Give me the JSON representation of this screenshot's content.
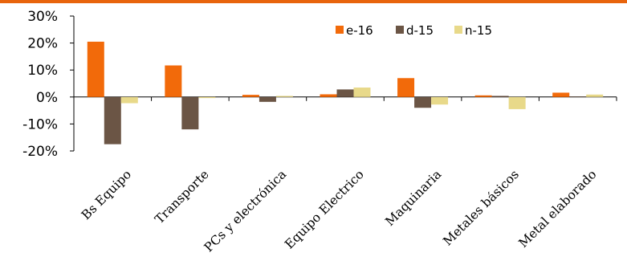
{
  "chart_data": {
    "type": "bar",
    "title": "",
    "xlabel": "",
    "ylabel": "",
    "categories": [
      "Bs Equipo",
      "Transporte",
      "PCs y electrónica",
      "Equipo Electrico",
      "Maquinaria",
      "Metales básicos",
      "Metal elaborado"
    ],
    "series": [
      {
        "name": "e-16",
        "color": "#f26a0a",
        "values": [
          20.5,
          11.7,
          0.8,
          1.0,
          7.0,
          0.6,
          1.6
        ]
      },
      {
        "name": "d-15",
        "color": "#6b5545",
        "values": [
          -17.5,
          -12.0,
          -1.8,
          2.8,
          -4.0,
          0.4,
          0.2
        ]
      },
      {
        "name": "n-15",
        "color": "#e8d98a",
        "values": [
          -2.3,
          -0.4,
          0.4,
          3.5,
          -2.8,
          -4.5,
          0.9
        ]
      }
    ],
    "ylim": [
      -20,
      30
    ],
    "yticks": [
      -20,
      -10,
      0,
      10,
      20,
      30
    ],
    "ytick_labels": [
      "-20%",
      "-10%",
      "0%",
      "10%",
      "20%",
      "30%"
    ],
    "legend_position": "top-right",
    "grid": false
  }
}
